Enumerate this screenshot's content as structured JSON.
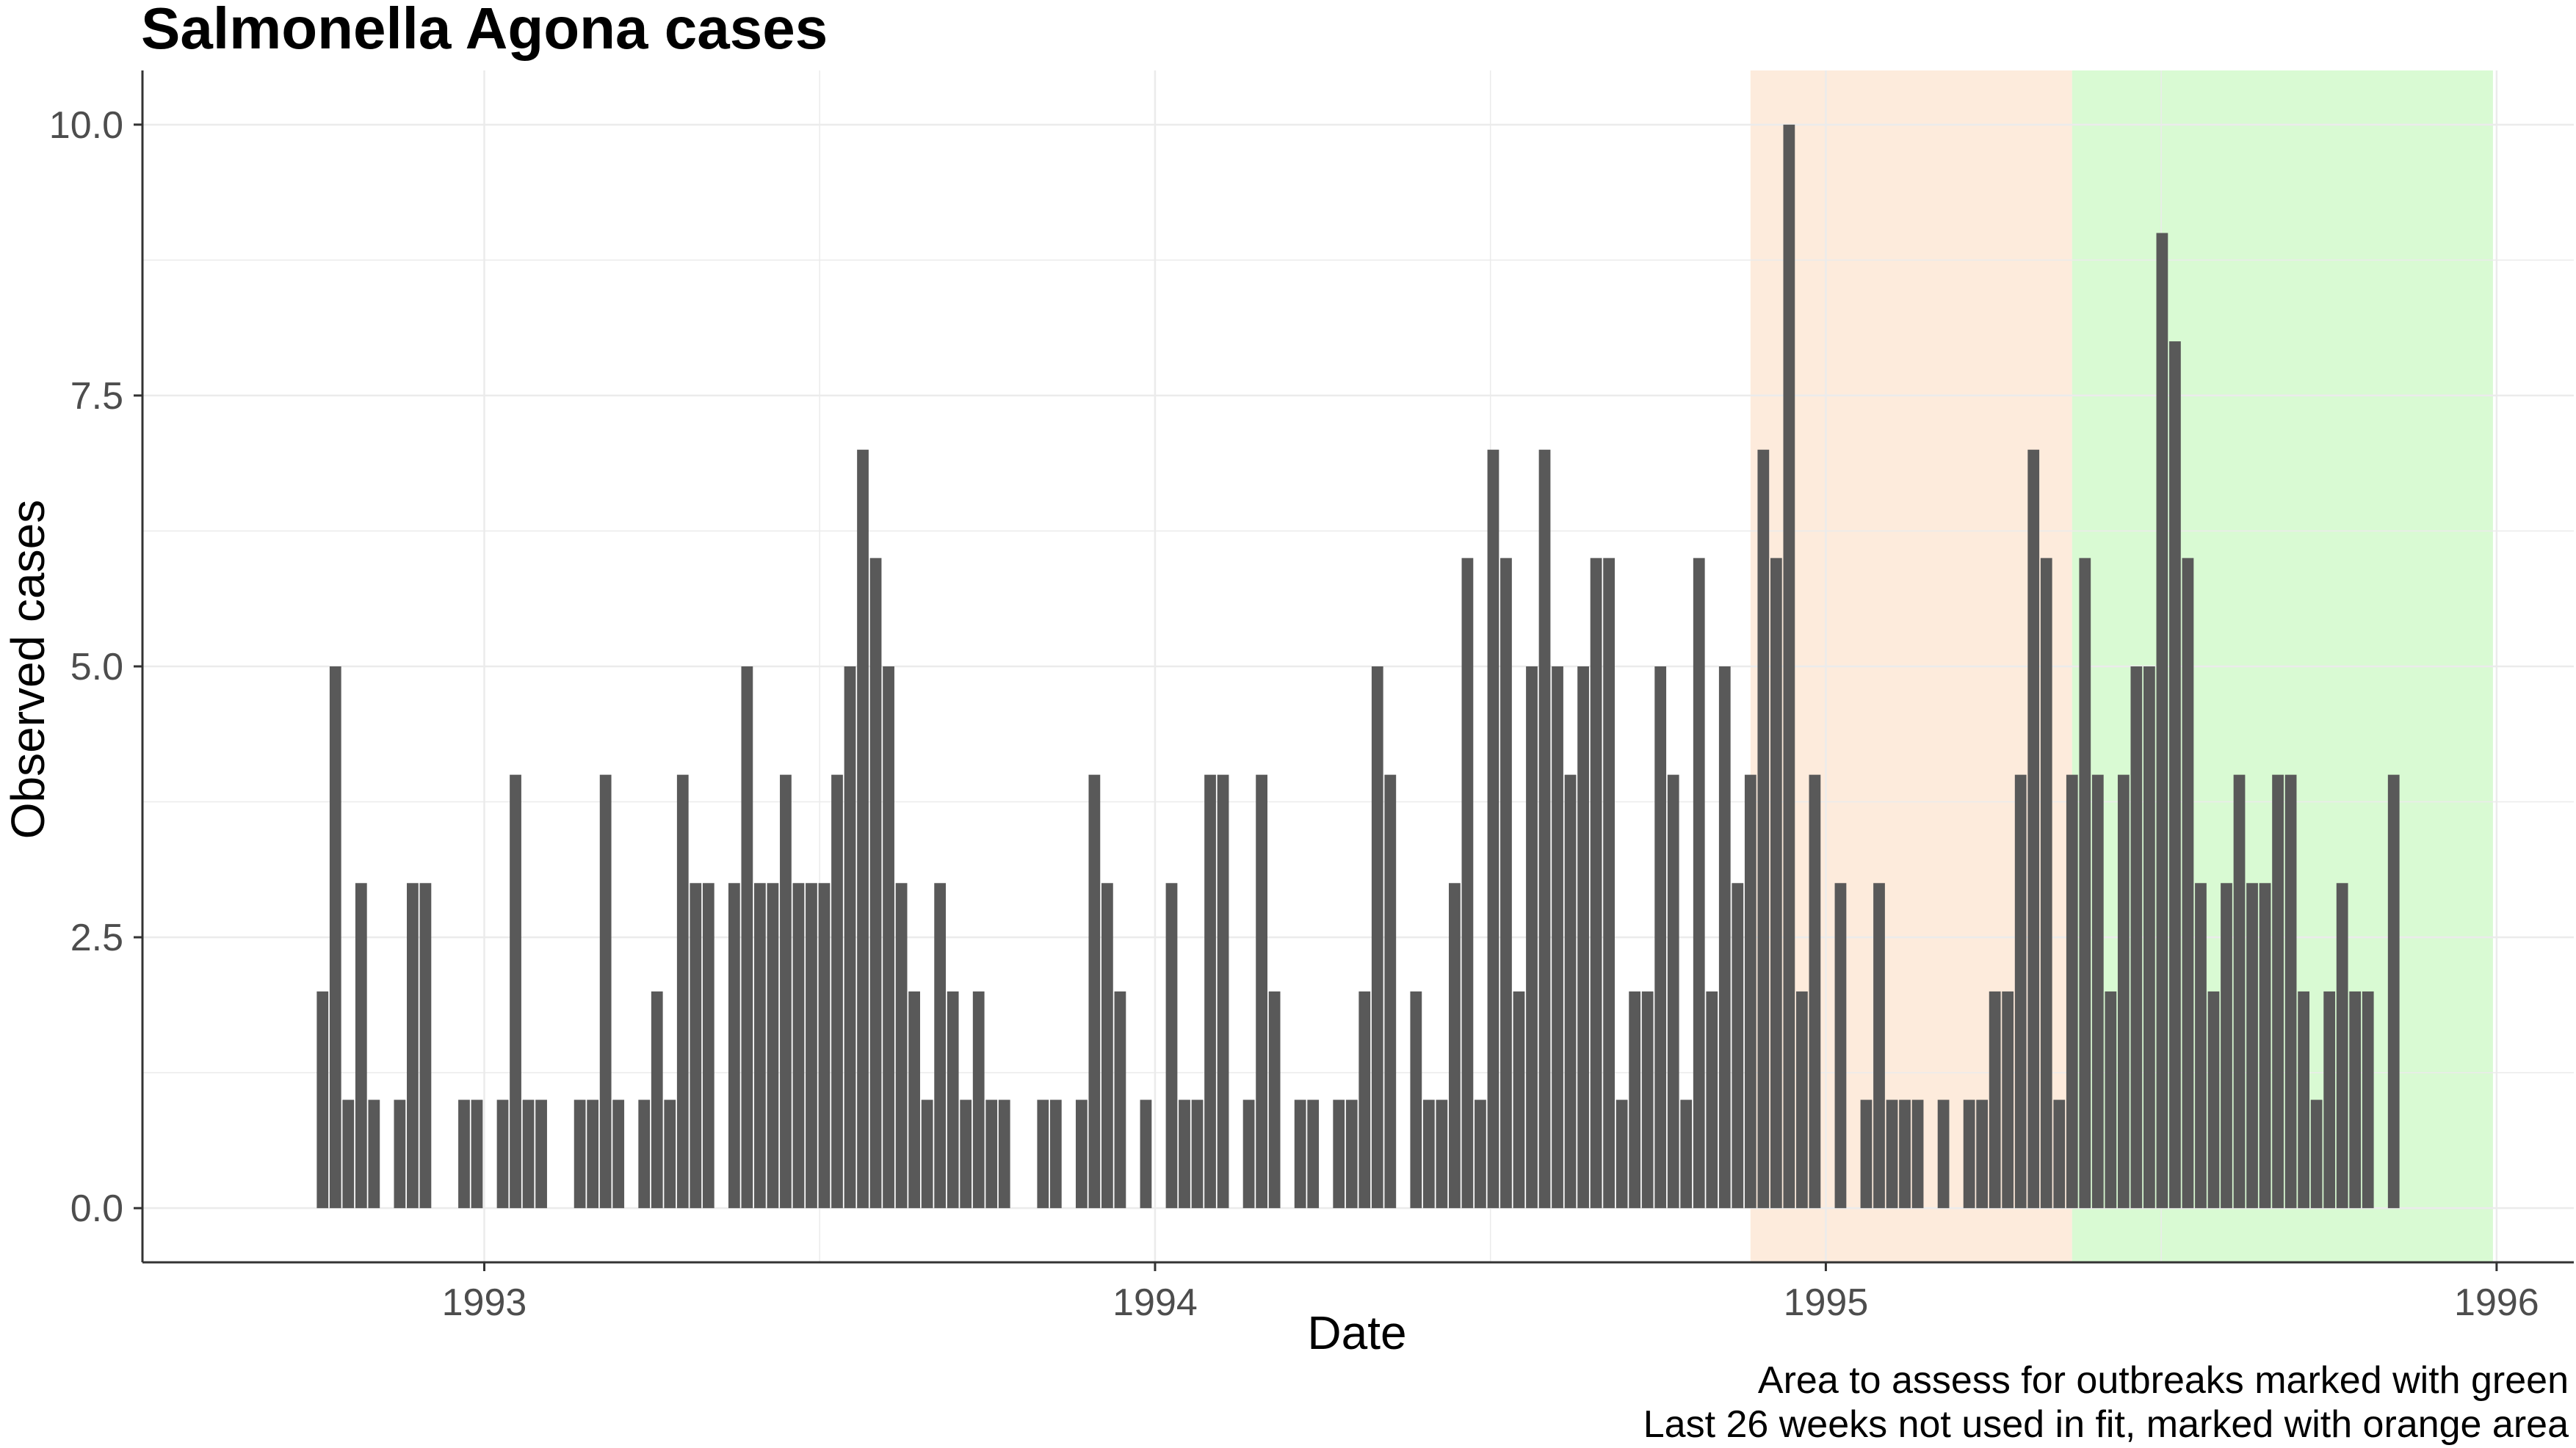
{
  "chart_data": {
    "type": "bar",
    "title": "Salmonella Agona cases",
    "xlabel": "Date",
    "ylabel": "Observed cases",
    "caption": [
      "Area to assess for outbreaks marked with green",
      "Last 26 weeks not used in fit, marked with orange area"
    ],
    "x_unit": "week",
    "x_start": "1992-10-05",
    "x_end": "1995-12-25",
    "xlim": [
      "1992-06-29",
      "1996-02-12"
    ],
    "ylim": [
      -0.5,
      10.5
    ],
    "y_ticks": [
      0,
      2.5,
      5,
      7.5,
      10
    ],
    "y_tick_labels": [
      "0.0",
      "2.5",
      "5.0",
      "7.5",
      "10.0"
    ],
    "x_ticks": [
      "1993-01-01",
      "1994-01-01",
      "1995-01-01",
      "1996-01-01"
    ],
    "x_tick_labels": [
      "1993",
      "1994",
      "1995",
      "1996"
    ],
    "bar_color": "#595959",
    "grid": true,
    "grid_color": "#ebebeb",
    "axis_color": "#333333",
    "regions": [
      {
        "name": "Last 26 weeks not used in fit",
        "from": "1994-11-21",
        "to": "1995-05-15",
        "color": "#fdebdc"
      },
      {
        "name": "Area to assess for outbreaks",
        "from": "1995-05-15",
        "to": "1995-12-30",
        "color": "#d9fad3"
      }
    ],
    "values": [
      2,
      5,
      1,
      3,
      1,
      0,
      1,
      3,
      3,
      0,
      0,
      1,
      1,
      0,
      1,
      4,
      1,
      1,
      0,
      0,
      1,
      1,
      4,
      1,
      0,
      1,
      2,
      1,
      4,
      3,
      3,
      0,
      3,
      5,
      3,
      3,
      4,
      3,
      3,
      3,
      4,
      5,
      7,
      6,
      5,
      3,
      2,
      1,
      3,
      2,
      1,
      2,
      1,
      1,
      0,
      0,
      1,
      1,
      0,
      1,
      4,
      3,
      2,
      0,
      1,
      0,
      3,
      1,
      1,
      4,
      4,
      0,
      1,
      4,
      2,
      0,
      1,
      1,
      0,
      1,
      1,
      2,
      5,
      4,
      0,
      2,
      1,
      1,
      3,
      6,
      1,
      7,
      6,
      2,
      5,
      7,
      5,
      4,
      5,
      6,
      6,
      1,
      2,
      2,
      5,
      4,
      1,
      6,
      2,
      5,
      3,
      4,
      7,
      6,
      10,
      2,
      4,
      0,
      3,
      0,
      1,
      3,
      1,
      1,
      1,
      0,
      1,
      0,
      1,
      1,
      2,
      2,
      4,
      7,
      6,
      1,
      4,
      6,
      4,
      2,
      4,
      5,
      5,
      9,
      8,
      6,
      3,
      2,
      3,
      4,
      3,
      3,
      4,
      4,
      2,
      1,
      2,
      3,
      2,
      2,
      0,
      4
    ]
  }
}
